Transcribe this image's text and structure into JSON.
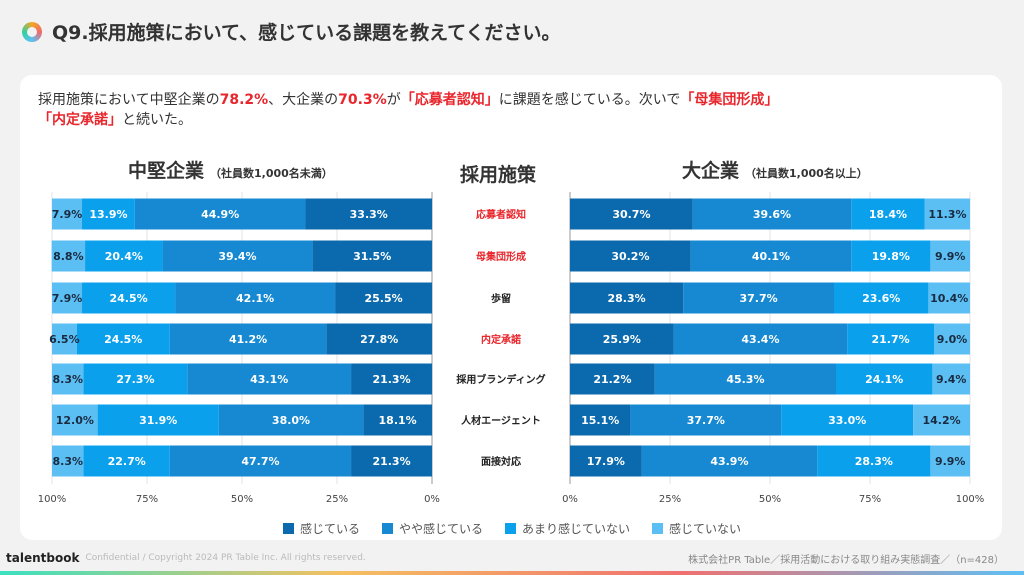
{
  "title": "Q9.採用施策において、感じている課題を教えてください。",
  "lead": {
    "p1": "採用施策において中堅企業の",
    "v1": "78.2%",
    "p2": "、大企業の",
    "v2": "70.3%",
    "p3": "が",
    "k1": "「応募者認知」",
    "p4": "に課題を感じている。次いで",
    "k2": "「母集団形成」",
    "k3": "「内定承諾」",
    "p5": "と続いた。"
  },
  "footer": {
    "brand": "talentbook",
    "copyright": "Confidential / Copyright 2024 PR Table Inc. All rights reserved.",
    "source": "株式会社PR Table／採用活動における取り組み実態調査／（n=428）"
  },
  "chart_data": {
    "type": "bar",
    "stacked": true,
    "orientation": "horizontal",
    "center_header": "採用施策",
    "categories": [
      "応募者認知",
      "母集団形成",
      "歩留",
      "内定承諾",
      "採用ブランディング",
      "人材エージェント",
      "面接対応"
    ],
    "highlight_categories": [
      "応募者認知",
      "母集団形成",
      "内定承諾"
    ],
    "highlight_color": "#e8262c",
    "legend": [
      "感じている",
      "やや感じている",
      "あまり感じていない",
      "感じていない"
    ],
    "colors": [
      "#0b6aad",
      "#1689d2",
      "#0aa0ec",
      "#5bbff4"
    ],
    "xlim": [
      0,
      100
    ],
    "ticks": [
      "0%",
      "25%",
      "50%",
      "75%",
      "100%"
    ],
    "panels": [
      {
        "title": "中堅企業",
        "subtitle": "（社員数1,000名未満）",
        "direction": "right-to-left",
        "series": [
          {
            "name": "感じている",
            "values": [
              33.3,
              31.5,
              25.5,
              27.8,
              21.3,
              18.1,
              21.3
            ]
          },
          {
            "name": "やや感じている",
            "values": [
              44.9,
              39.4,
              42.1,
              41.2,
              43.1,
              38.0,
              47.7
            ]
          },
          {
            "name": "あまり感じていない",
            "values": [
              13.9,
              20.4,
              24.5,
              24.5,
              27.3,
              31.9,
              22.7
            ]
          },
          {
            "name": "感じていない",
            "values": [
              7.9,
              8.8,
              7.9,
              6.5,
              8.3,
              12.0,
              8.3
            ]
          }
        ]
      },
      {
        "title": "大企業",
        "subtitle": "（社員数1,000名以上）",
        "direction": "left-to-right",
        "series": [
          {
            "name": "感じている",
            "values": [
              30.7,
              30.2,
              28.3,
              25.9,
              21.2,
              15.1,
              17.9
            ]
          },
          {
            "name": "やや感じている",
            "values": [
              39.6,
              40.1,
              37.7,
              43.4,
              45.3,
              37.7,
              43.9
            ]
          },
          {
            "name": "あまり感じていない",
            "values": [
              18.4,
              19.8,
              23.6,
              21.7,
              24.1,
              33.0,
              28.3
            ]
          },
          {
            "name": "感じていない",
            "values": [
              11.3,
              9.9,
              10.4,
              9.0,
              9.4,
              14.2,
              9.9
            ]
          }
        ]
      }
    ]
  }
}
